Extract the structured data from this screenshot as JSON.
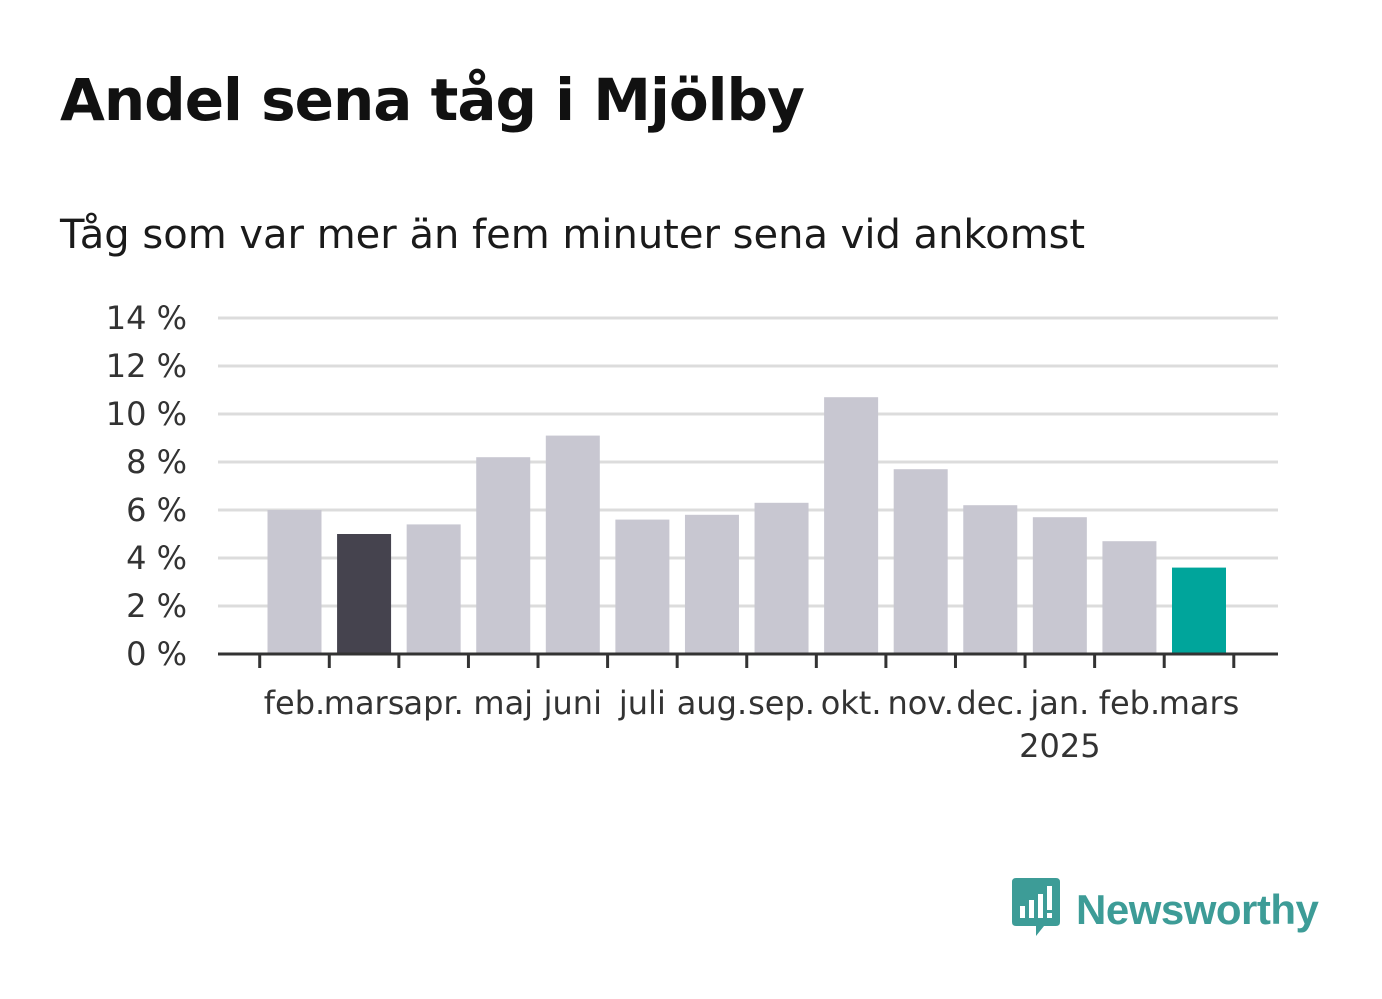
{
  "title": "Andel sena tåg i Mjölby",
  "subtitle": "Tåg som var mer än fem minuter sena vid ankomst",
  "brand": {
    "name": "Newsworthy",
    "color": "#3d9c97",
    "icon": "newsworthy-chart-bubble-icon"
  },
  "colors": {
    "default_bar": "#c8c7d1",
    "highlight_prev": "#45434e",
    "highlight_current": "#00a59b",
    "grid": "#dcdcdc",
    "axis": "#333333"
  },
  "chart_data": {
    "type": "bar",
    "categories": [
      "feb.",
      "mars",
      "apr.",
      "maj",
      "juni",
      "juli",
      "aug.",
      "sep.",
      "okt.",
      "nov.",
      "dec.",
      "jan.",
      "feb.",
      "mars"
    ],
    "category_sublabels": [
      "",
      "",
      "",
      "",
      "",
      "",
      "",
      "",
      "",
      "",
      "",
      "2025",
      "",
      ""
    ],
    "values": [
      6.0,
      5.0,
      5.4,
      8.2,
      9.1,
      5.6,
      5.8,
      6.3,
      10.7,
      7.7,
      6.2,
      5.7,
      4.7,
      3.6
    ],
    "highlight": [
      "default",
      "previous",
      "default",
      "default",
      "default",
      "default",
      "default",
      "default",
      "default",
      "default",
      "default",
      "default",
      "default",
      "current"
    ],
    "yticks": [
      "0 %",
      "2 %",
      "4 %",
      "6 %",
      "8 %",
      "10 %",
      "12 %",
      "14 %"
    ],
    "ylim": [
      0,
      14
    ],
    "grid": true
  }
}
